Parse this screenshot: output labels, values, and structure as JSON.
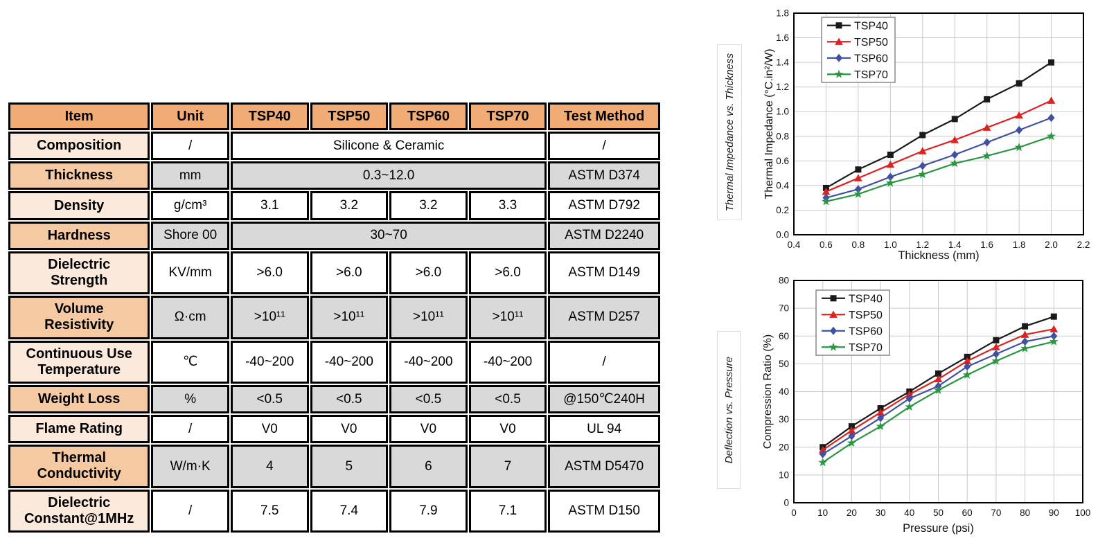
{
  "table": {
    "headers": [
      "Item",
      "Unit",
      "TSP40",
      "TSP50",
      "TSP60",
      "TSP70",
      "Test Method"
    ],
    "rows": [
      {
        "item": "Composition",
        "unit": "/",
        "merged": "Silicone & Ceramic",
        "test": "/"
      },
      {
        "item": "Thickness",
        "unit": "mm",
        "merged": "0.3~12.0",
        "test": "ASTM D374"
      },
      {
        "item": "Density",
        "unit": "g/cm³",
        "values": [
          "3.1",
          "3.2",
          "3.2",
          "3.3"
        ],
        "test": "ASTM D792"
      },
      {
        "item": "Hardness",
        "unit": "Shore 00",
        "merged": "30~70",
        "test": "ASTM D2240"
      },
      {
        "item": "Dielectric Strength",
        "unit": "KV/mm",
        "values": [
          ">6.0",
          ">6.0",
          ">6.0",
          ">6.0"
        ],
        "test": "ASTM D149"
      },
      {
        "item": "Volume Resistivity",
        "unit": "Ω·cm",
        "values": [
          ">10¹¹",
          ">10¹¹",
          ">10¹¹",
          ">10¹¹"
        ],
        "test": "ASTM D257"
      },
      {
        "item": "Continuous Use Temperature",
        "unit": "℃",
        "values": [
          "-40~200",
          "-40~200",
          "-40~200",
          "-40~200"
        ],
        "test": "/"
      },
      {
        "item": "Weight Loss",
        "unit": "%",
        "values": [
          "<0.5",
          "<0.5",
          "<0.5",
          "<0.5"
        ],
        "test": "@150℃240H"
      },
      {
        "item": "Flame Rating",
        "unit": "/",
        "values": [
          "V0",
          "V0",
          "V0",
          "V0"
        ],
        "test": "UL 94"
      },
      {
        "item": "Thermal Conductivity",
        "unit": "W/m·K",
        "values": [
          "4",
          "5",
          "6",
          "7"
        ],
        "test": "ASTM D5470"
      },
      {
        "item": "Dielectric Constant@1MHz",
        "unit": "/",
        "values": [
          "7.5",
          "7.4",
          "7.9",
          "7.1"
        ],
        "test": "ASTM D150"
      }
    ]
  },
  "colors": {
    "header_orange": "#f1ac76",
    "row_light_orange": "#fbe9dc",
    "row_mid_orange": "#f5c9a1",
    "cell_grey": "#d9d9d9",
    "series_black": "#1a1a1a",
    "series_red": "#dd2222",
    "series_blue": "#3f51a3",
    "series_green": "#2a9640",
    "gridline": "#c9c9c9"
  },
  "chart_data": [
    {
      "type": "line",
      "side_label": "Thermal Impedance vs. Thickness",
      "xlabel": "Thickness (mm)",
      "ylabel": "Thermal Impedance (°C.in²/W)",
      "xlim": [
        0.4,
        2.2
      ],
      "ylim": [
        0,
        1.8
      ],
      "grid": true,
      "legend_position": "top-left",
      "xticks": [
        0.4,
        0.6,
        0.8,
        1.0,
        1.2,
        1.4,
        1.6,
        1.8,
        2.0,
        2.2
      ],
      "xtick_labels": [
        "0.4",
        "0.6",
        "0.8",
        "1.0",
        "1.2",
        "1.4",
        "1.6",
        "1.8",
        "2.0",
        "2.2"
      ],
      "yticks": [
        0,
        0.2,
        0.4,
        0.6,
        0.8,
        1.0,
        1.2,
        1.4,
        1.6,
        1.8
      ],
      "ytick_labels": [
        "0.0",
        "0.2",
        "0.4",
        "0.6",
        "0.8",
        "1.0",
        "1.2",
        "1.4",
        "1.6",
        "1.8"
      ],
      "x": [
        0.6,
        0.8,
        1.0,
        1.2,
        1.4,
        1.6,
        1.8,
        2.0
      ],
      "series": [
        {
          "name": "TSP40",
          "color": "#1a1a1a",
          "marker": "square",
          "values": [
            0.38,
            0.53,
            0.65,
            0.81,
            0.94,
            1.1,
            1.23,
            1.4
          ]
        },
        {
          "name": "TSP50",
          "color": "#dd2222",
          "marker": "triangle",
          "values": [
            0.35,
            0.46,
            0.57,
            0.68,
            0.77,
            0.87,
            0.97,
            1.09
          ]
        },
        {
          "name": "TSP60",
          "color": "#3f51a3",
          "marker": "diamond",
          "values": [
            0.3,
            0.37,
            0.47,
            0.56,
            0.65,
            0.75,
            0.85,
            0.95
          ]
        },
        {
          "name": "TSP70",
          "color": "#2a9640",
          "marker": "star",
          "values": [
            0.27,
            0.33,
            0.42,
            0.49,
            0.58,
            0.64,
            0.71,
            0.8
          ]
        }
      ]
    },
    {
      "type": "line",
      "side_label": "Deflection vs. Pressure",
      "xlabel": "Pressure (psi)",
      "ylabel": "Compression Ratio (%)",
      "xlim": [
        0,
        100
      ],
      "ylim": [
        0,
        80
      ],
      "grid": true,
      "legend_position": "top-left",
      "xticks": [
        0,
        10,
        20,
        30,
        40,
        50,
        60,
        70,
        80,
        90,
        100
      ],
      "xtick_labels": [
        "0",
        "10",
        "20",
        "30",
        "40",
        "50",
        "60",
        "70",
        "80",
        "90",
        "100"
      ],
      "yticks": [
        0,
        10,
        20,
        30,
        40,
        50,
        60,
        70,
        80
      ],
      "ytick_labels": [
        "0",
        "10",
        "20",
        "30",
        "40",
        "50",
        "60",
        "70",
        "80"
      ],
      "x": [
        10,
        20,
        30,
        40,
        50,
        60,
        70,
        80,
        90
      ],
      "series": [
        {
          "name": "TSP40",
          "color": "#1a1a1a",
          "marker": "square",
          "values": [
            20.0,
            27.5,
            34.0,
            40.0,
            46.5,
            52.5,
            58.5,
            63.5,
            67.0
          ]
        },
        {
          "name": "TSP50",
          "color": "#dd2222",
          "marker": "triangle",
          "values": [
            19.0,
            26.0,
            32.5,
            39.0,
            44.5,
            51.0,
            56.0,
            60.5,
            62.5
          ]
        },
        {
          "name": "TSP60",
          "color": "#3f51a3",
          "marker": "diamond",
          "values": [
            17.5,
            24.0,
            30.5,
            37.5,
            42.0,
            49.0,
            53.5,
            58.0,
            60.0
          ]
        },
        {
          "name": "TSP70",
          "color": "#2a9640",
          "marker": "star",
          "values": [
            14.5,
            21.5,
            27.5,
            34.5,
            40.5,
            46.0,
            51.0,
            55.5,
            58.0
          ]
        }
      ]
    }
  ]
}
